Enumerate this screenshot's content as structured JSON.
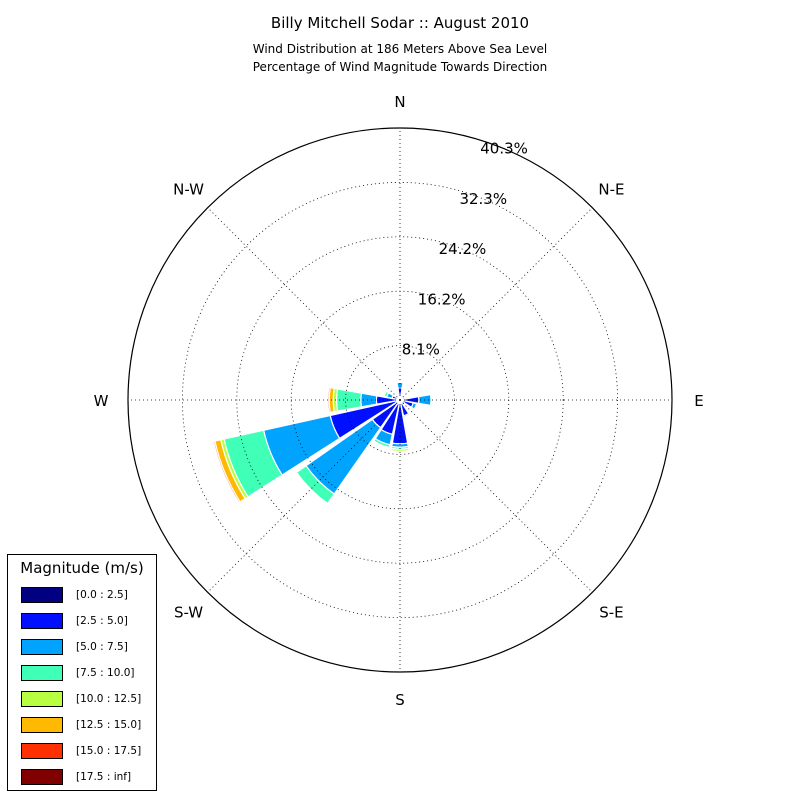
{
  "chart_data": {
    "type": "windrose",
    "title": "Billy Mitchell Sodar :: August 2010",
    "subtitle_lines": [
      "Wind Distribution at 186 Meters Above Sea Level",
      "Percentage of Wind Magnitude Towards Direction"
    ],
    "radial_ticks": [
      "8.1%",
      "16.2%",
      "24.2%",
      "32.3%",
      "40.3%"
    ],
    "radial_tick_values": [
      8.06,
      16.12,
      24.18,
      32.24,
      40.3
    ],
    "rmax": 40.3,
    "direction_labels": [
      "N",
      "N-E",
      "E",
      "S-E",
      "S",
      "S-W",
      "W",
      "N-W"
    ],
    "legend_title": "Magnitude (m/s)",
    "bins": [
      {
        "name": "[0.0 : 2.5]",
        "color": "#000080"
      },
      {
        "name": "[2.5 : 5.0]",
        "color": "#0010ff"
      },
      {
        "name": "[5.0 : 7.5]",
        "color": "#00a4ff"
      },
      {
        "name": "[7.5 : 10.0]",
        "color": "#40ffb7"
      },
      {
        "name": "[10.0 : 12.5]",
        "color": "#b7ff40"
      },
      {
        "name": "[12.5 : 15.0]",
        "color": "#ffb900"
      },
      {
        "name": "[15.0 : 17.5]",
        "color": "#ff3000"
      },
      {
        "name": "[17.5 : inf]",
        "color": "#800000"
      }
    ],
    "sectors": [
      {
        "direction_deg": 0,
        "cumulative": [
          0.6,
          1.8,
          2.6,
          2.6,
          2.6,
          2.6,
          2.6,
          2.6
        ]
      },
      {
        "direction_deg": 22.5,
        "cumulative": [
          0.3,
          0.5,
          0.5,
          0.5,
          0.5,
          0.5,
          0.5,
          0.5
        ]
      },
      {
        "direction_deg": 45,
        "cumulative": [
          0.3,
          0.4,
          0.4,
          0.4,
          0.4,
          0.4,
          0.4,
          0.4
        ]
      },
      {
        "direction_deg": 67.5,
        "cumulative": [
          0.3,
          0.7,
          0.7,
          0.7,
          0.7,
          0.7,
          0.7,
          0.7
        ]
      },
      {
        "direction_deg": 90,
        "cumulative": [
          0.5,
          2.8,
          4.6,
          4.6,
          4.6,
          4.6,
          4.6,
          4.6
        ]
      },
      {
        "direction_deg": 112.5,
        "cumulative": [
          0.4,
          2.0,
          2.5,
          2.5,
          2.5,
          2.5,
          2.5,
          2.5
        ]
      },
      {
        "direction_deg": 135,
        "cumulative": [
          0.3,
          0.9,
          0.9,
          0.9,
          0.9,
          0.9,
          0.9,
          0.9
        ]
      },
      {
        "direction_deg": 157.5,
        "cumulative": [
          0.5,
          2.4,
          2.6,
          2.6,
          2.6,
          2.6,
          2.6,
          2.6
        ]
      },
      {
        "direction_deg": 180,
        "cumulative": [
          0.5,
          6.5,
          7.0,
          7.3,
          7.6,
          7.6,
          7.6,
          7.6
        ]
      },
      {
        "direction_deg": 202.5,
        "cumulative": [
          0.6,
          5.2,
          6.8,
          7.2,
          7.2,
          7.2,
          7.2,
          7.2
        ]
      },
      {
        "direction_deg": 225,
        "cumulative": [
          0.6,
          5.0,
          17.0,
          18.7,
          18.7,
          18.7,
          18.7,
          18.7
        ]
      },
      {
        "direction_deg": 247.5,
        "cumulative": [
          0.6,
          10.6,
          20.7,
          26.7,
          27.2,
          28.1,
          28.3,
          28.3
        ]
      },
      {
        "direction_deg": 270,
        "cumulative": [
          0.5,
          3.5,
          5.8,
          9.4,
          9.9,
          10.5,
          10.7,
          10.7
        ]
      },
      {
        "direction_deg": 292.5,
        "cumulative": [
          0.4,
          1.2,
          2.0,
          2.4,
          2.6,
          2.6,
          2.6,
          2.6
        ]
      },
      {
        "direction_deg": 315,
        "cumulative": [
          0.3,
          0.6,
          0.6,
          0.6,
          0.6,
          0.6,
          0.6,
          0.6
        ]
      },
      {
        "direction_deg": 337.5,
        "cumulative": [
          0.3,
          0.6,
          0.6,
          0.6,
          0.6,
          0.6,
          0.6,
          0.6
        ]
      }
    ]
  }
}
